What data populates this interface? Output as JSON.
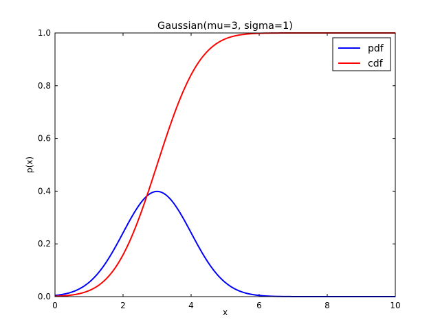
{
  "chart_data": {
    "type": "line",
    "title": "Gaussian(mu=3, sigma=1)",
    "xlabel": "x",
    "ylabel": "p(x)",
    "xlim": [
      0,
      10
    ],
    "ylim": [
      0,
      1.0
    ],
    "x_ticks": [
      "0",
      "2",
      "4",
      "6",
      "8",
      "10"
    ],
    "y_ticks": [
      "0.0",
      "0.2",
      "0.4",
      "0.6",
      "0.8",
      "1.0"
    ],
    "grid": false,
    "legend_position": "top-right",
    "series": [
      {
        "name": "pdf",
        "color": "#0000ff",
        "x": [
          0,
          0.5,
          1,
          1.5,
          2,
          2.5,
          3,
          3.5,
          4,
          4.5,
          5,
          5.5,
          6,
          6.5,
          7,
          7.5,
          8,
          8.5,
          9,
          9.5,
          10
        ],
        "y": [
          0.004,
          0.018,
          0.054,
          0.13,
          0.242,
          0.352,
          0.399,
          0.352,
          0.242,
          0.13,
          0.054,
          0.018,
          0.004,
          0.001,
          0.0,
          0.0,
          0.0,
          0.0,
          0.0,
          0.0,
          0.0
        ]
      },
      {
        "name": "cdf",
        "color": "#ff0000",
        "x": [
          0,
          0.5,
          1,
          1.5,
          2,
          2.5,
          3,
          3.5,
          4,
          4.5,
          5,
          5.5,
          6,
          6.5,
          7,
          7.5,
          8,
          8.5,
          9,
          9.5,
          10
        ],
        "y": [
          0.001,
          0.006,
          0.023,
          0.067,
          0.159,
          0.309,
          0.5,
          0.691,
          0.841,
          0.933,
          0.977,
          0.994,
          0.999,
          1.0,
          1.0,
          1.0,
          1.0,
          1.0,
          1.0,
          1.0,
          1.0
        ]
      }
    ]
  }
}
